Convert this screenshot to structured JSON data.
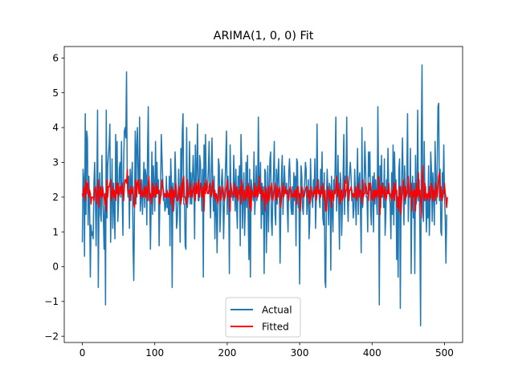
{
  "chart_data": {
    "type": "line",
    "title": "ARIMA(1, 0, 0) Fit",
    "xlabel": "",
    "ylabel": "",
    "xlim": [
      -25,
      525
    ],
    "ylim": [
      -2.18,
      6.33
    ],
    "x_ticks": [
      0,
      100,
      200,
      300,
      400,
      500
    ],
    "y_ticks": [
      -2,
      -1,
      0,
      1,
      2,
      3,
      4,
      5,
      6
    ],
    "grid": false,
    "legend_position": "lower center",
    "series": [
      {
        "name": "Actual",
        "color": "#1f77b4",
        "x_start": 0,
        "x_step": 1,
        "values": [
          0.7,
          2.8,
          2.5,
          0.3,
          4.4,
          1.5,
          3.9,
          3.7,
          1.2,
          2.6,
          1.8,
          -0.3,
          1.2,
          0.9,
          1.0,
          0.8,
          2.4,
          3.0,
          2.0,
          0.6,
          2.3,
          4.5,
          -0.6,
          1.8,
          2.7,
          1.5,
          1.3,
          3.2,
          2.0,
          1.4,
          0.5,
          2.1,
          -1.1,
          4.5,
          1.4,
          2.9,
          3.2,
          3.5,
          4.1,
          0.7,
          1.8,
          3.1,
          1.1,
          2.4,
          1.6,
          0.8,
          3.8,
          2.2,
          3.6,
          1.3,
          1.9,
          2.8,
          3.0,
          2.0,
          3.6,
          2.0,
          0.9,
          3.0,
          3.9,
          4.0,
          3.7,
          5.6,
          2.4,
          2.0,
          2.6,
          1.1,
          2.8,
          1.9,
          2.6,
          3.0,
          0.6,
          -0.4,
          1.7,
          3.9,
          1.8,
          3.5,
          4.0,
          2.5,
          2.1,
          4.3,
          1.6,
          2.0,
          2.5,
          1.5,
          2.3,
          3.0,
          1.7,
          2.8,
          2.6,
          1.2,
          3.3,
          4.6,
          1.9,
          2.0,
          0.5,
          1.8,
          3.3,
          1.5,
          2.9,
          2.3,
          1.6,
          3.6,
          2.0,
          3.0,
          2.1,
          2.5,
          0.6,
          1.9,
          2.2,
          3.8,
          3.1,
          2.5,
          1.9,
          2.0,
          1.6,
          1.7,
          2.6,
          1.7,
          2.1,
          1.5,
          2.6,
          0.6,
          3.1,
          2.4,
          -0.6,
          2.4,
          1.6,
          1.9,
          3.3,
          2.6,
          1.1,
          1.3,
          1.9,
          2.8,
          2.1,
          0.7,
          3.4,
          1.9,
          3.9,
          4.4,
          1.8,
          1.8,
          0.6,
          0.5,
          4.0,
          1.7,
          2.0,
          2.0,
          3.6,
          1.8,
          2.7,
          1.8,
          2.5,
          3.2,
          2.5,
          0.8,
          3.5,
          2.1,
          2.9,
          4.1,
          1.9,
          1.9,
          3.2,
          3.0,
          2.3,
          1.6,
          2.8,
          -0.3,
          3.5,
          2.3,
          3.8,
          2.5,
          2.2,
          2.3,
          2.8,
          3.6,
          2.1,
          1.4,
          2.7,
          3.7,
          2.4,
          1.6,
          2.6,
          0.8,
          2.1,
          1.8,
          0.4,
          1.7,
          3.1,
          2.9,
          1.0,
          1.6,
          2.4,
          2.8,
          2.2,
          0.8,
          1.7,
          2.4,
          3.1,
          3.9,
          1.5,
          2.6,
          2.0,
          -0.2,
          3.5,
          2.4,
          2.0,
          2.1,
          1.9,
          3.2,
          2.4,
          1.6,
          2.8,
          1.7,
          1.1,
          2.6,
          2.2,
          2.9,
          0.6,
          3.8,
          2.9,
          1.1,
          2.0,
          2.7,
          0.9,
          1.7,
          3.0,
          1.7,
          3.2,
          1.4,
          0.2,
          2.8,
          -0.3,
          2.5,
          2.3,
          2.1,
          1.9,
          3.3,
          1.5,
          2.0,
          2.9,
          1.9,
          2.2,
          4.3,
          2.4,
          2.1,
          3.0,
          1.1,
          2.4,
          1.5,
          2.3,
          -0.2,
          2.8,
          2.7,
          0.4,
          1.5,
          2.9,
          1.0,
          2.2,
          3.1,
          3.3,
          1.3,
          0.9,
          2.1,
          2.7,
          3.6,
          1.5,
          1.2,
          2.8,
          1.8,
          2.6,
          3.1,
          2.0,
          0.1,
          1.6,
          2.7,
          3.2,
          1.5,
          2.2,
          2.9,
          2.3,
          2.1,
          2.4,
          1.7,
          1.0,
          2.7,
          3.1,
          2.5,
          1.7,
          1.5,
          2.3,
          1.5,
          2.7,
          1.9,
          2.6,
          0.6,
          3.1,
          3.0,
          1.7,
          2.0,
          -0.5,
          1.9,
          2.9,
          2.6,
          1.7,
          1.5,
          2.2,
          2.4,
          3.0,
          2.8,
          1.5,
          1.9,
          2.5,
          0.8,
          1.3,
          3.1,
          2.3,
          2.0,
          1.7,
          2.5,
          2.1,
          3.1,
          1.1,
          2.0,
          4.1,
          2.3,
          2.5,
          2.0,
          1.7,
          2.8,
          2.1,
          3.3,
          1.4,
          1.2,
          2.7,
          -0.4,
          -0.6,
          1.9,
          2.8,
          2.2,
          1.2,
          2.4,
          2.3,
          -0.1,
          2.6,
          1.6,
          1.0,
          2.5,
          2.1,
          2.8,
          4.3,
          1.6,
          2.1,
          3.2,
          1.8,
          0.5,
          2.7,
          2.4,
          0.9,
          1.7,
          2.6,
          3.8,
          1.5,
          2.6,
          2.4,
          4.3,
          2.0,
          1.3,
          2.4,
          2.7,
          3.0,
          2.6,
          1.9,
          2.1,
          1.4,
          1.7,
          2.8,
          2.0,
          1.2,
          2.4,
          3.4,
          1.5,
          2.5,
          2.7,
          1.6,
          0.4,
          4.0,
          1.7,
          2.1,
          2.3,
          3.6,
          2.9,
          2.0,
          2.0,
          1.0,
          3.3,
          2.6,
          3.3,
          1.6,
          1.2,
          2.2,
          2.6,
          1.0,
          2.7,
          1.8,
          2.5,
          2.0,
          1.5,
          4.6,
          2.4,
          -1.1,
          2.9,
          1.7,
          3.2,
          2.0,
          2.4,
          1.7,
          3.1,
          0.9,
          1.5,
          2.5,
          2.2,
          3.4,
          2.2,
          2.0,
          1.8,
          0.8,
          2.7,
          1.5,
          3.5,
          1.2,
          3.3,
          2.3,
          2.5,
          0.2,
          1.8,
          -0.3,
          2.8,
          3.1,
          -1.2,
          1.9,
          2.6,
          3.7,
          2.4,
          1.2,
          2.9,
          1.8,
          2.1,
          2.6,
          4.4,
          1.3,
          2.2,
          2.0,
          3.4,
          -0.2,
          2.1,
          2.6,
          1.4,
          2.4,
          -0.2,
          3.2,
          1.8,
          2.0,
          4.5,
          1.9,
          2.5,
          1.0,
          -1.7,
          3.7,
          5.8,
          1.6,
          1.3,
          3.6,
          1.9,
          2.3,
          1.0,
          2.0,
          1.4,
          2.9,
          0.9,
          1.7,
          3.3,
          2.8,
          1.3,
          2.7,
          2.0,
          1.2,
          3.6,
          2.5,
          1.8,
          3.0,
          4.6,
          4.7,
          1.9,
          2.8,
          1.0,
          0.9,
          2.7,
          2.0,
          3.5,
          2.1,
          1.4,
          0.1,
          1.5
        ]
      },
      {
        "name": "Fitted",
        "color": "#ff0000",
        "x_start": 0,
        "x_step": 1,
        "values": [
          2.1,
          2.0,
          2.3,
          2.2,
          1.9,
          2.5,
          2.1,
          2.4,
          2.4,
          2.0,
          2.2,
          2.1,
          1.8,
          2.0,
          2.0,
          2.0,
          1.9,
          2.2,
          2.3,
          2.1,
          1.8,
          2.2,
          2.5,
          1.7,
          2.1,
          2.3,
          2.0,
          2.0,
          2.3,
          2.1,
          2.0,
          1.8,
          2.1,
          1.6,
          2.5,
          2.0,
          2.3,
          2.3,
          2.4,
          2.5,
          1.9,
          2.1,
          2.3,
          2.0,
          2.2,
          2.0,
          1.9,
          2.4,
          2.1,
          2.4,
          2.0,
          2.1,
          2.3,
          2.3,
          2.1,
          2.4,
          2.1,
          1.9,
          2.3,
          2.5,
          2.5,
          2.4,
          2.8,
          2.2,
          2.1,
          2.2,
          1.9,
          2.3,
          2.1,
          2.2,
          2.3,
          1.8,
          1.7,
          2.0,
          2.5,
          2.0,
          2.4,
          2.5,
          2.2,
          2.1,
          2.5,
          2.0,
          2.1,
          2.2,
          2.0,
          2.1,
          2.3,
          2.0,
          2.3,
          2.2,
          1.9,
          2.4,
          2.6,
          2.0,
          2.1,
          1.8,
          2.0,
          2.4,
          2.0,
          2.3,
          2.1,
          2.0,
          2.4,
          2.1,
          2.3,
          2.1,
          2.2,
          1.8,
          2.0,
          2.1,
          2.5,
          2.3,
          2.2,
          2.0,
          2.1,
          2.0,
          2.0,
          2.2,
          2.0,
          2.1,
          2.0,
          2.2,
          1.8,
          2.3,
          2.2,
          1.6,
          2.2,
          2.0,
          2.0,
          2.4,
          2.2,
          1.9,
          1.9,
          2.0,
          2.3,
          2.1,
          1.8,
          2.4,
          2.0,
          2.5,
          2.6,
          2.0,
          2.0,
          1.8,
          1.8,
          2.5,
          2.0,
          2.1,
          2.1,
          2.4,
          2.0,
          2.2,
          2.0,
          2.2,
          2.4,
          2.2,
          1.9,
          2.4,
          2.1,
          2.3,
          2.5,
          2.0,
          2.0,
          2.4,
          2.3,
          2.1,
          2.0,
          2.3,
          1.6,
          2.4,
          2.1,
          2.5,
          2.2,
          2.1,
          2.1,
          2.3,
          2.4,
          2.1,
          2.0,
          2.2,
          2.5,
          2.2,
          2.0,
          2.2,
          1.9,
          2.1,
          2.0,
          1.8,
          2.0,
          2.3,
          2.3,
          1.9,
          2.0,
          2.2,
          2.3,
          2.1,
          1.9,
          2.0,
          2.2,
          2.3,
          2.5,
          2.0,
          2.2,
          2.1,
          1.6,
          2.4,
          2.2,
          2.1,
          2.1,
          2.0,
          2.4,
          2.2,
          2.0,
          2.3,
          2.0,
          1.9,
          2.2,
          2.1,
          2.3,
          1.8,
          2.5,
          2.3,
          1.9,
          2.1,
          2.2,
          1.9,
          2.0,
          2.3,
          2.0,
          2.4,
          2.0,
          1.7,
          2.3,
          1.6,
          2.2,
          2.1,
          2.1,
          2.0,
          2.4,
          2.0,
          2.1,
          2.3,
          2.0,
          2.1,
          2.6,
          2.2,
          2.1,
          2.3,
          1.9,
          2.2,
          2.0,
          2.1,
          1.6,
          2.3,
          2.2,
          1.8,
          2.0,
          2.3,
          1.9,
          2.1,
          2.3,
          2.4,
          2.0,
          1.9,
          2.1,
          2.2,
          2.4,
          2.0,
          1.9,
          2.3,
          2.0,
          2.2,
          2.3,
          2.1,
          1.7,
          2.0,
          2.2,
          2.4,
          2.0,
          2.1,
          2.3,
          2.1,
          2.1,
          2.2,
          2.0,
          1.9,
          2.2,
          2.3,
          2.2,
          2.0,
          2.0,
          2.1,
          2.0,
          2.2,
          2.0,
          2.2,
          1.8,
          2.3,
          2.3,
          2.0,
          2.1,
          1.6,
          2.0,
          2.3,
          2.2,
          2.0,
          2.0,
          2.1,
          2.2,
          2.3,
          2.3,
          2.0,
          2.0,
          2.2,
          1.8,
          1.9,
          2.3,
          2.1,
          2.1,
          2.0,
          2.2,
          2.1,
          2.3,
          1.9,
          2.1,
          2.5,
          2.1,
          2.2,
          2.1,
          2.0,
          2.3,
          2.1,
          2.4,
          2.0,
          1.9,
          2.2,
          1.6,
          1.6,
          2.0,
          2.3,
          2.1,
          1.9,
          2.2,
          2.1,
          1.7,
          2.2,
          2.0,
          1.9,
          2.2,
          2.1,
          2.3,
          2.6,
          2.0,
          2.1,
          2.4,
          2.0,
          1.8,
          2.2,
          2.2,
          1.9,
          2.0,
          2.2,
          2.5,
          2.0,
          2.2,
          2.2,
          2.6,
          2.1,
          1.9,
          2.2,
          2.2,
          2.3,
          2.2,
          2.0,
          2.1,
          2.0,
          2.0,
          2.3,
          2.1,
          1.9,
          2.2,
          2.4,
          2.0,
          2.2,
          2.2,
          2.0,
          1.8,
          2.5,
          2.0,
          2.1,
          2.1,
          2.4,
          2.3,
          2.1,
          2.1,
          1.9,
          2.4,
          2.2,
          2.4,
          2.0,
          1.9,
          2.1,
          2.2,
          1.9,
          2.2,
          2.0,
          2.2,
          2.1,
          2.0,
          2.6,
          2.2,
          1.5,
          2.3,
          2.0,
          2.4,
          2.1,
          2.2,
          2.0,
          2.3,
          1.9,
          2.0,
          2.2,
          2.1,
          2.4,
          2.1,
          2.1,
          2.0,
          1.9,
          2.2,
          2.0,
          2.4,
          1.9,
          2.4,
          2.1,
          2.2,
          1.7,
          2.0,
          1.6,
          2.3,
          2.3,
          1.5,
          2.0,
          2.2,
          2.5,
          2.2,
          1.9,
          2.3,
          2.0,
          2.1,
          2.2,
          2.6,
          2.0,
          2.1,
          2.1,
          2.4,
          1.6,
          2.1,
          2.2,
          2.0,
          2.2,
          1.6,
          2.4,
          2.0,
          2.1,
          2.7,
          2.0,
          2.2,
          1.9,
          1.4,
          2.5,
          2.9,
          2.0,
          1.9,
          2.4,
          2.0,
          2.1,
          1.9,
          2.1,
          2.0,
          2.3,
          1.9,
          2.0,
          2.4,
          2.3,
          1.9,
          2.2,
          2.1,
          1.9,
          2.4,
          2.2,
          2.0,
          2.3,
          2.6,
          2.7,
          2.0,
          2.3,
          1.9,
          1.9,
          2.2,
          2.1,
          2.4,
          2.1,
          2.0,
          1.7,
          2.0
        ]
      }
    ]
  }
}
